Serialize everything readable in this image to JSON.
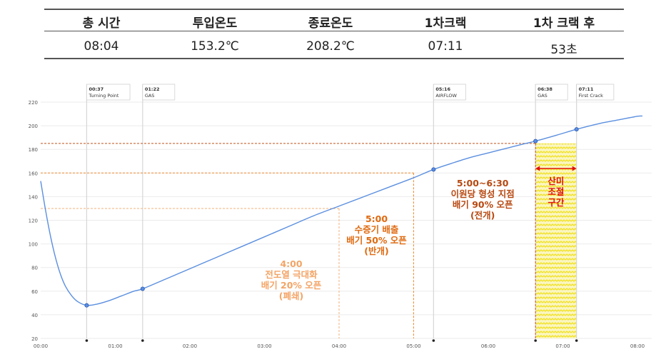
{
  "summary": {
    "headers": [
      "총 시간",
      "투입온도",
      "종료온도",
      "1차크랙",
      "1차 크랙 후"
    ],
    "values": [
      "08:04",
      "153.2℃",
      "208.2℃",
      "07:11",
      "53초"
    ]
  },
  "chart_data": {
    "type": "line",
    "xlim": [
      "00:00",
      "08:00"
    ],
    "ylim": [
      20,
      220
    ],
    "x_ticks": [
      "00:00",
      "01:00",
      "02:00",
      "03:00",
      "04:00",
      "05:00",
      "06:00",
      "07:00",
      "08:00"
    ],
    "y_ticks": [
      20,
      40,
      60,
      80,
      100,
      120,
      140,
      160,
      180,
      200,
      220
    ],
    "grid": true,
    "series": [
      {
        "color": "#5b8fe0",
        "x": [
          "00:00",
          "00:04",
          "00:08",
          "00:12",
          "00:16",
          "00:20",
          "00:25",
          "00:30",
          "00:37",
          "00:45",
          "00:55",
          "01:05",
          "01:15",
          "01:22",
          "01:40",
          "02:00",
          "02:20",
          "02:40",
          "03:00",
          "03:20",
          "03:40",
          "04:00",
          "04:20",
          "04:40",
          "05:00",
          "05:16",
          "05:30",
          "05:45",
          "06:00",
          "06:15",
          "06:30",
          "06:38",
          "06:55",
          "07:11",
          "07:30",
          "07:45",
          "08:00",
          "08:04"
        ],
        "y": [
          153.2,
          128,
          106,
          88,
          74,
          64,
          56,
          51,
          48,
          49,
          52,
          56,
          60,
          62,
          70,
          79,
          88,
          97,
          106,
          115,
          124,
          132,
          140,
          148,
          156,
          163,
          168,
          173,
          177,
          181,
          185,
          187,
          192,
          197,
          202,
          205,
          208,
          208.2
        ]
      }
    ],
    "events": [
      {
        "time": "00:37",
        "label": "Turning Point",
        "value": 48
      },
      {
        "time": "01:22",
        "label": "GAS",
        "value": 62
      },
      {
        "time": "05:16",
        "label": "AIRFLOW",
        "value": 163
      },
      {
        "time": "06:38",
        "label": "GAS",
        "value": 187
      },
      {
        "time": "07:11",
        "label": "First Crack",
        "value": 197
      }
    ],
    "reference_lines": [
      {
        "temp": 130,
        "until": "04:00",
        "color": "#f3b27a"
      },
      {
        "temp": 160,
        "until": "05:00",
        "color": "#f08a2c"
      },
      {
        "temp": 185,
        "until": "06:38",
        "color": "#c0501a"
      }
    ],
    "annotations": [
      {
        "time": "04:00",
        "color": "#f3a466",
        "lines": [
          "4:00",
          "전도열 극대화",
          "배기 20% 오픈",
          "(폐쇄)"
        ]
      },
      {
        "time": "05:00",
        "color": "#e06a10",
        "lines": [
          "5:00",
          "수증기 배출",
          "배기 50% 오픈",
          "(반개)"
        ]
      },
      {
        "time": "06:38",
        "color": "#b84810",
        "lines": [
          "5:00~6:30",
          "이원당 형성 지점",
          "배기 90% 오픈",
          "(전개)"
        ]
      }
    ],
    "acidity_zone": {
      "start": "06:38",
      "end": "07:11",
      "top_temp": 185,
      "color": "#f0e020",
      "lines": [
        "산미",
        "조절",
        "구간"
      ],
      "text_color": "#e01010"
    }
  }
}
